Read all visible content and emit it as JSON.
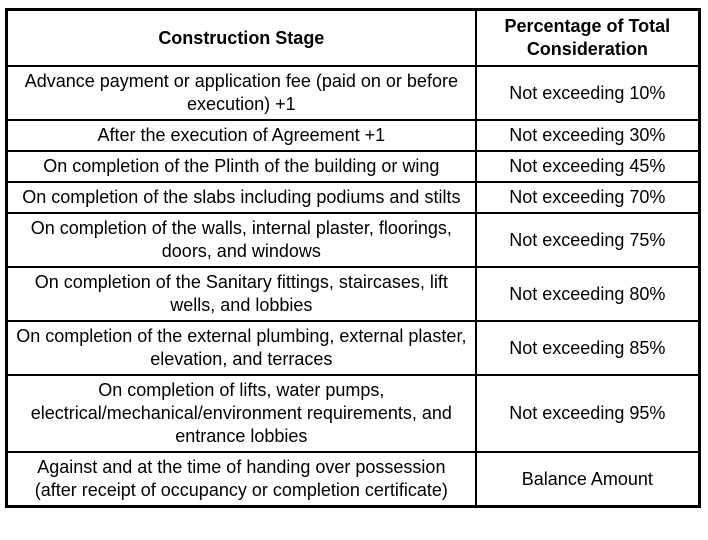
{
  "table": {
    "name": "construction-stage-payment-schedule",
    "columns": [
      "Construction Stage",
      "Percentage of Total Consideration"
    ],
    "rows": [
      {
        "stage": "Advance payment or application fee (paid on or before execution) +1",
        "percentage": "Not exceeding 10%"
      },
      {
        "stage": "After the execution of Agreement +1",
        "percentage": "Not exceeding 30%"
      },
      {
        "stage": "On completion of the Plinth of the building or wing",
        "percentage": "Not exceeding 45%"
      },
      {
        "stage": "On completion of the slabs including podiums and stilts",
        "percentage": "Not exceeding 70%"
      },
      {
        "stage": "On completion of the walls, internal plaster, floorings, doors, and windows",
        "percentage": "Not exceeding 75%"
      },
      {
        "stage": "On completion of the Sanitary fittings, staircases, lift wells, and lobbies",
        "percentage": "Not exceeding 80%"
      },
      {
        "stage": "On completion of the external plumbing, external plaster, elevation, and terraces",
        "percentage": "Not exceeding 85%"
      },
      {
        "stage": "On completion of lifts, water pumps, electrical/mechanical/environment requirements, and entrance lobbies",
        "percentage": "Not exceeding 95%"
      },
      {
        "stage": "Against and at the time of handing over possession (after receipt of occupancy or completion certificate)",
        "percentage": "Balance Amount"
      }
    ],
    "colors": {
      "border": "#000000",
      "text": "#000000",
      "background": "#ffffff"
    }
  }
}
